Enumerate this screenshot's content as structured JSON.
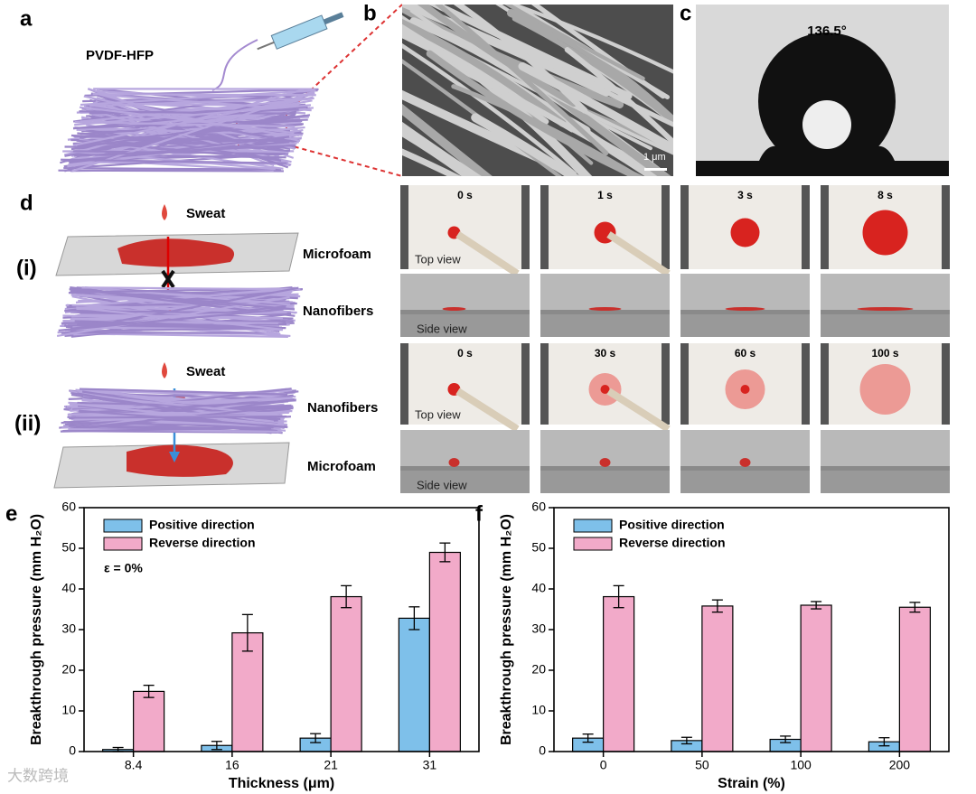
{
  "figure": {
    "panel_a": {
      "label": "a",
      "material": "PVDF-HFP"
    },
    "panel_b": {
      "label": "b",
      "scale_bar": "1 μm"
    },
    "panel_c": {
      "label": "c",
      "contact_angle": "136.5°"
    },
    "panel_d": {
      "label": "d",
      "rows": [
        {
          "label": "(i)",
          "sweat": "Sweat",
          "top_layer": "Microfoam",
          "bottom_layer": "Nanofibers",
          "times": [
            "0 s",
            "1 s",
            "3 s",
            "8 s"
          ],
          "top_view": "Top view",
          "side_view": "Side view"
        },
        {
          "label": "(ii)",
          "sweat": "Sweat",
          "top_layer": "Nanofibers",
          "bottom_layer": "Microfoam",
          "times": [
            "0 s",
            "30 s",
            "60 s",
            "100 s"
          ],
          "top_view": "Top view",
          "side_view": "Side view"
        }
      ]
    },
    "watermark": "大数跨境"
  },
  "chart_data": [
    {
      "type": "bar",
      "panel_label": "e",
      "categories": [
        "8.4",
        "16",
        "21",
        "31"
      ],
      "x_label": "Thickness (μm)",
      "y_label": "Breakthrough pressure (mm H₂O)",
      "annotation": "ε = 0%",
      "ylim": [
        0,
        60
      ],
      "yticks": [
        0,
        10,
        20,
        30,
        40,
        50,
        60
      ],
      "legend": "upper left",
      "series": [
        {
          "name": "Positive direction",
          "color": "#7ec0ea",
          "values": [
            0.5,
            1.5,
            3.3,
            32.8
          ],
          "errors": [
            0.5,
            1.0,
            1.1,
            2.8
          ]
        },
        {
          "name": "Reverse direction",
          "color": "#f2aac9",
          "values": [
            14.8,
            29.2,
            38.1,
            49.0
          ],
          "errors": [
            1.5,
            4.5,
            2.7,
            2.3
          ]
        }
      ]
    },
    {
      "type": "bar",
      "panel_label": "f",
      "categories": [
        "0",
        "50",
        "100",
        "200"
      ],
      "x_label": "Strain (%)",
      "y_label": "Breakthrough pressure (mm H₂O)",
      "ylim": [
        0,
        60
      ],
      "yticks": [
        0,
        10,
        20,
        30,
        40,
        50,
        60
      ],
      "legend": "upper left",
      "series": [
        {
          "name": "Positive direction",
          "color": "#7ec0ea",
          "values": [
            3.3,
            2.7,
            3.0,
            2.4
          ],
          "errors": [
            1.0,
            0.8,
            0.8,
            1.0
          ]
        },
        {
          "name": "Reverse direction",
          "color": "#f2aac9",
          "values": [
            38.1,
            35.8,
            36.0,
            35.5
          ],
          "errors": [
            2.7,
            1.5,
            0.9,
            1.2
          ]
        }
      ]
    }
  ]
}
